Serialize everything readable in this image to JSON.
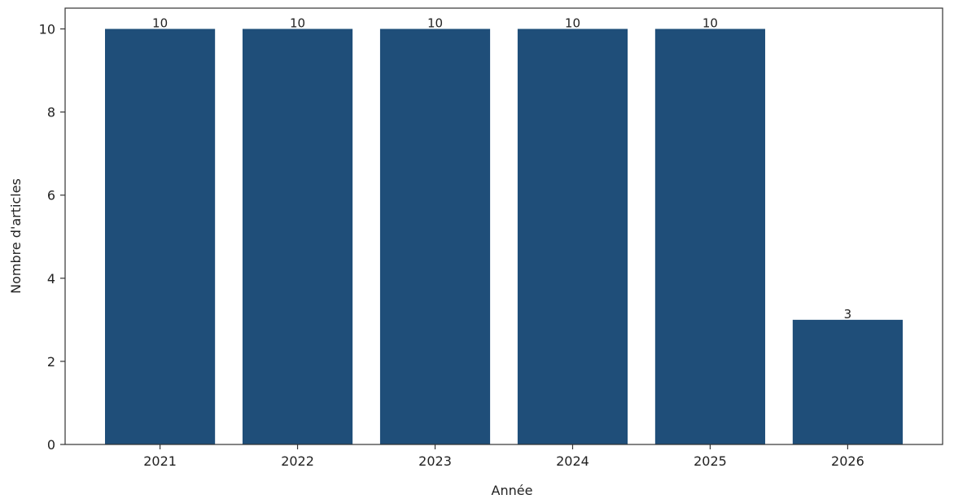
{
  "chart_data": {
    "type": "bar",
    "categories": [
      "2021",
      "2022",
      "2023",
      "2024",
      "2025",
      "2026"
    ],
    "values": [
      10,
      10,
      10,
      10,
      10,
      3
    ],
    "title": "",
    "xlabel": "Année",
    "ylabel": "Nombre d'articles",
    "ylim": [
      0,
      10.5
    ],
    "yticks": [
      0,
      2,
      4,
      6,
      8,
      10
    ],
    "grid": false,
    "bar_color": "#1f4e79",
    "data_labels": [
      "10",
      "10",
      "10",
      "10",
      "10",
      "3"
    ]
  }
}
